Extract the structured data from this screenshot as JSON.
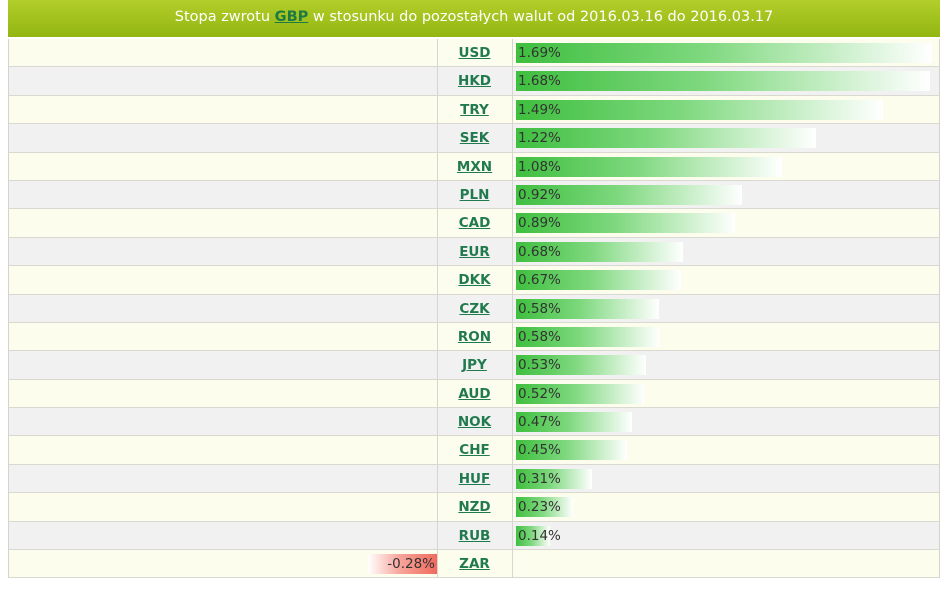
{
  "header": {
    "prefix": "Stopa zwrotu",
    "base_currency": "GBP",
    "suffix": "w stosunku do pozostałych walut od 2016.03.16 do 2016.03.17"
  },
  "colors": {
    "positive": "#3fbf3f",
    "negative": "#f06a5c",
    "header": "#a3c21f"
  },
  "chart_data": {
    "type": "bar",
    "orientation": "horizontal",
    "title": "Stopa zwrotu GBP w stosunku do pozostałych walut od 2016.03.16 do 2016.03.17",
    "categories": [
      "USD",
      "HKD",
      "TRY",
      "SEK",
      "MXN",
      "PLN",
      "CAD",
      "EUR",
      "DKK",
      "CZK",
      "RON",
      "JPY",
      "AUD",
      "NOK",
      "CHF",
      "HUF",
      "NZD",
      "RUB",
      "ZAR"
    ],
    "values": [
      1.69,
      1.68,
      1.49,
      1.22,
      1.08,
      0.92,
      0.89,
      0.68,
      0.67,
      0.58,
      0.58,
      0.53,
      0.52,
      0.47,
      0.45,
      0.31,
      0.23,
      0.14,
      -0.28
    ],
    "labels": [
      "1.69%",
      "1.68%",
      "1.49%",
      "1.22%",
      "1.08%",
      "0.92%",
      "0.89%",
      "0.68%",
      "0.67%",
      "0.58%",
      "0.58%",
      "0.53%",
      "0.52%",
      "0.47%",
      "0.45%",
      "0.31%",
      "0.23%",
      "0.14%",
      "-0.28%"
    ],
    "unit": "%"
  }
}
